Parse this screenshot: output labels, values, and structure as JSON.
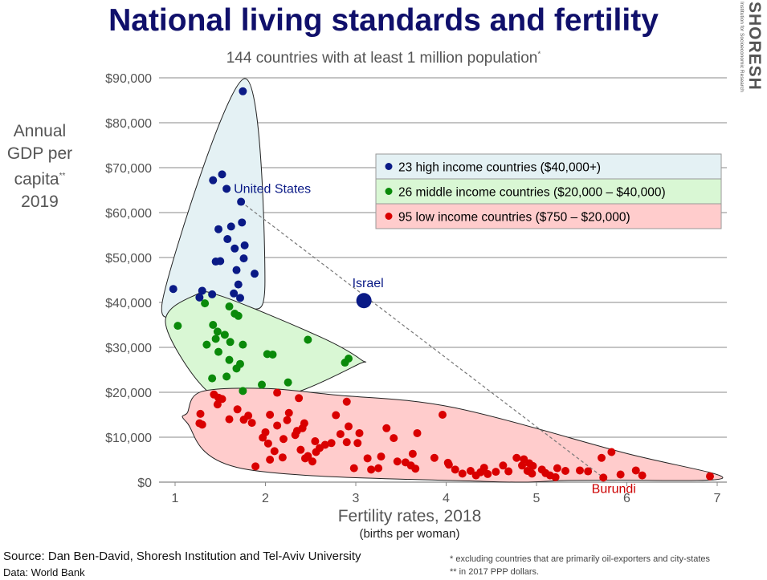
{
  "title": "National living standards and fertility",
  "subtitle": "144 countries with at least 1 million population",
  "subtitle_mark": "*",
  "ylabel_lines": [
    "Annual",
    "GDP per",
    "capita",
    "2019"
  ],
  "ylabel_mark": "**",
  "xlabel": "Fertility rates, 2018",
  "xlabel_sub": "(births per woman)",
  "source": "Source: Dan Ben-David, Shoresh Institution and Tel-Aviv University",
  "data_credit": "Data: World Bank",
  "footnotes": [
    "* excluding countries that are primarily oil-exporters and city-states",
    "** in 2017 PPP dollars."
  ],
  "logo": {
    "name": "SHORESH",
    "sub": "Institution for Socioeconomic Research"
  },
  "colors": {
    "high": "#0a1a86",
    "middle": "#0a8a0a",
    "low": "#d90000",
    "title": "#10106b"
  },
  "chart_data": {
    "type": "scatter",
    "title": "National living standards and fertility",
    "subtitle": "144 countries with at least 1 million population",
    "xlabel": "Fertility rates, 2018",
    "ylabel": "Annual GDP per capita 2019",
    "xlim": [
      0.85,
      7.05
    ],
    "ylim": [
      0,
      90000
    ],
    "x_ticks": [
      "1",
      "2",
      "3",
      "4",
      "5",
      "6",
      "7"
    ],
    "y_ticks": [
      "$0",
      "$10,000",
      "$20,000",
      "$30,000",
      "$40,000",
      "$50,000",
      "$60,000",
      "$70,000",
      "$80,000",
      "$90,000"
    ],
    "grid": "horizontal",
    "legend_position": "top-right",
    "series": [
      {
        "name": "23 high income countries ($40,000+)",
        "color": "#0a1a86",
        "points": [
          [
            1.75,
            87000
          ],
          [
            1.52,
            68500
          ],
          [
            1.42,
            67200
          ],
          [
            1.57,
            65300
          ],
          [
            1.73,
            62400
          ],
          [
            1.74,
            57800
          ],
          [
            1.48,
            56300
          ],
          [
            1.62,
            56900
          ],
          [
            1.58,
            54100
          ],
          [
            1.77,
            52700
          ],
          [
            1.66,
            52000
          ],
          [
            1.45,
            49100
          ],
          [
            1.5,
            49200
          ],
          [
            1.76,
            49800
          ],
          [
            1.68,
            47200
          ],
          [
            1.88,
            46400
          ],
          [
            1.7,
            44000
          ],
          [
            0.98,
            43000
          ],
          [
            1.3,
            42600
          ],
          [
            1.41,
            41800
          ],
          [
            1.27,
            41100
          ],
          [
            1.72,
            41000
          ],
          [
            1.65,
            42000
          ]
        ]
      },
      {
        "name": "26 middle income countries ($20,000 – $40,000)",
        "color": "#0a8a0a",
        "points": [
          [
            1.33,
            39800
          ],
          [
            1.6,
            39100
          ],
          [
            1.66,
            37500
          ],
          [
            1.7,
            37000
          ],
          [
            1.03,
            34800
          ],
          [
            1.42,
            35000
          ],
          [
            1.47,
            33500
          ],
          [
            1.55,
            32800
          ],
          [
            1.45,
            31900
          ],
          [
            1.61,
            31200
          ],
          [
            1.35,
            30600
          ],
          [
            1.75,
            30600
          ],
          [
            2.47,
            31700
          ],
          [
            1.48,
            29000
          ],
          [
            2.02,
            28500
          ],
          [
            2.08,
            28400
          ],
          [
            1.6,
            27200
          ],
          [
            1.72,
            26300
          ],
          [
            2.92,
            27500
          ],
          [
            2.88,
            26600
          ],
          [
            1.68,
            25300
          ],
          [
            1.57,
            23500
          ],
          [
            1.41,
            23100
          ],
          [
            2.25,
            22200
          ],
          [
            1.96,
            21700
          ],
          [
            1.75,
            20300
          ]
        ]
      },
      {
        "name": "95 low income countries ($750 – $20,000)",
        "color": "#d90000",
        "points": [
          [
            1.43,
            19500
          ],
          [
            1.48,
            18800
          ],
          [
            1.52,
            18500
          ],
          [
            1.47,
            17300
          ],
          [
            2.13,
            19900
          ],
          [
            2.37,
            18700
          ],
          [
            2.9,
            17900
          ],
          [
            1.28,
            15200
          ],
          [
            1.69,
            16200
          ],
          [
            1.81,
            14800
          ],
          [
            1.76,
            13900
          ],
          [
            1.6,
            14000
          ],
          [
            2.05,
            15000
          ],
          [
            2.26,
            15400
          ],
          [
            2.24,
            13800
          ],
          [
            1.27,
            13100
          ],
          [
            1.3,
            12800
          ],
          [
            2.13,
            12600
          ],
          [
            2.43,
            13100
          ],
          [
            2.41,
            12000
          ],
          [
            2.78,
            14900
          ],
          [
            2.92,
            12400
          ],
          [
            3.34,
            12000
          ],
          [
            3.68,
            10900
          ],
          [
            3.96,
            15000
          ],
          [
            2.0,
            11100
          ],
          [
            1.97,
            9900
          ],
          [
            2.03,
            8600
          ],
          [
            2.2,
            9600
          ],
          [
            2.33,
            10500
          ],
          [
            2.83,
            10700
          ],
          [
            3.04,
            10900
          ],
          [
            3.42,
            9800
          ],
          [
            2.55,
            9100
          ],
          [
            2.66,
            8300
          ],
          [
            2.73,
            8700
          ],
          [
            2.9,
            8900
          ],
          [
            3.02,
            8700
          ],
          [
            2.39,
            7200
          ],
          [
            2.56,
            6700
          ],
          [
            2.19,
            5500
          ],
          [
            2.05,
            5000
          ],
          [
            2.47,
            5800
          ],
          [
            2.44,
            5300
          ],
          [
            2.52,
            4600
          ],
          [
            1.89,
            3500
          ],
          [
            2.98,
            3100
          ],
          [
            3.25,
            3100
          ],
          [
            3.28,
            5700
          ],
          [
            3.46,
            4600
          ],
          [
            3.55,
            4400
          ],
          [
            3.61,
            3700
          ],
          [
            3.66,
            3000
          ],
          [
            3.63,
            6300
          ],
          [
            3.87,
            5400
          ],
          [
            4.03,
            3900
          ],
          [
            4.1,
            2800
          ],
          [
            4.18,
            1900
          ],
          [
            4.27,
            2500
          ],
          [
            4.33,
            1500
          ],
          [
            4.38,
            2200
          ],
          [
            4.46,
            1800
          ],
          [
            4.55,
            2300
          ],
          [
            4.63,
            3700
          ],
          [
            4.69,
            2400
          ],
          [
            4.78,
            5400
          ],
          [
            4.86,
            5100
          ],
          [
            4.84,
            3700
          ],
          [
            4.92,
            4200
          ],
          [
            4.96,
            3600
          ],
          [
            4.9,
            2500
          ],
          [
            5.06,
            2800
          ],
          [
            5.15,
            1500
          ],
          [
            5.23,
            3100
          ],
          [
            5.32,
            2500
          ],
          [
            5.21,
            1100
          ],
          [
            5.48,
            2600
          ],
          [
            5.57,
            2400
          ],
          [
            5.72,
            5400
          ],
          [
            5.83,
            6700
          ],
          [
            5.93,
            1700
          ],
          [
            6.1,
            2600
          ],
          [
            6.17,
            1500
          ],
          [
            5.74,
            1000
          ],
          [
            6.92,
            1300
          ],
          [
            3.17,
            2800
          ],
          [
            4.02,
            4300
          ],
          [
            4.42,
            3200
          ],
          [
            4.95,
            1900
          ],
          [
            5.1,
            2000
          ],
          [
            2.35,
            11400
          ],
          [
            2.6,
            7600
          ],
          [
            3.13,
            5300
          ],
          [
            1.85,
            13200
          ],
          [
            2.1,
            6900
          ]
        ]
      }
    ],
    "highlight": {
      "label": "Israel",
      "x": 3.09,
      "y": 40400,
      "color": "#0a1a86"
    },
    "annotations": [
      {
        "label": "United States",
        "x": 1.73,
        "y": 62400,
        "color": "#0a1a86"
      },
      {
        "label": "Burundi",
        "x": 5.74,
        "y": 1000,
        "color": "#cc0000"
      }
    ],
    "trend_line": {
      "from": [
        1.73,
        62400
      ],
      "to": [
        5.74,
        1000
      ],
      "style": "dashed"
    }
  }
}
